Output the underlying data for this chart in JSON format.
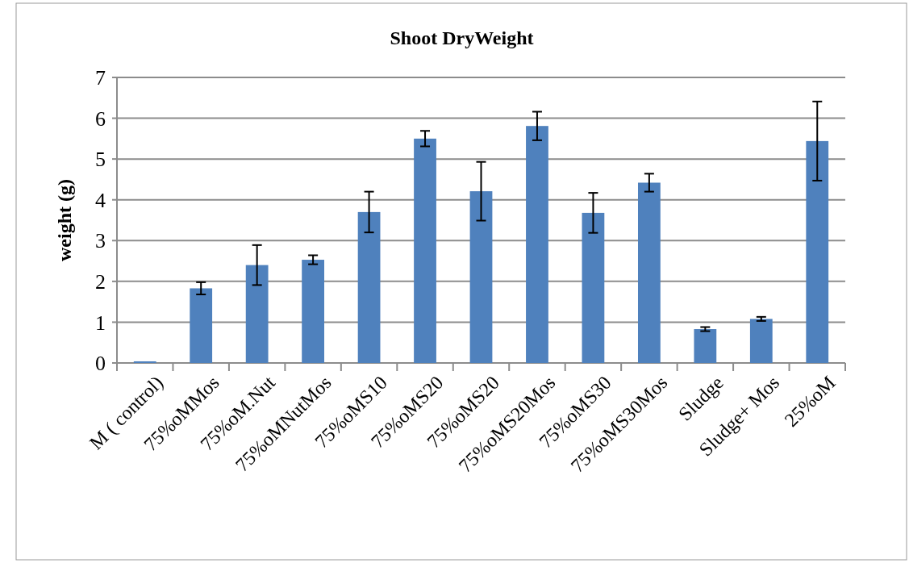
{
  "chart_data": {
    "type": "bar",
    "title": "Shoot DryWeight",
    "ylabel": "weight (g)",
    "categories": [
      "M ( control)",
      "75%oMMos",
      "75%oM.Nut",
      "75%oMNutMos",
      "75%oMS10",
      "75%oMS20",
      "75%oMS20",
      "75%oMS20Mos",
      "75%oMS30",
      "75%oMS30Mos",
      "Sludge",
      "Sludge+ Mos",
      "25%oM"
    ],
    "values": [
      0.04,
      1.83,
      2.4,
      2.53,
      3.7,
      5.5,
      4.21,
      5.81,
      3.68,
      4.42,
      0.83,
      1.08,
      5.44
    ],
    "errors": [
      null,
      0.15,
      0.49,
      0.11,
      0.5,
      0.19,
      0.72,
      0.35,
      0.49,
      0.22,
      0.05,
      0.05,
      0.97
    ],
    "color": "#4f81bd",
    "ylim": [
      0,
      7
    ],
    "yticks": [
      0,
      1,
      2,
      3,
      4,
      5,
      6,
      7
    ],
    "grid": "y"
  }
}
